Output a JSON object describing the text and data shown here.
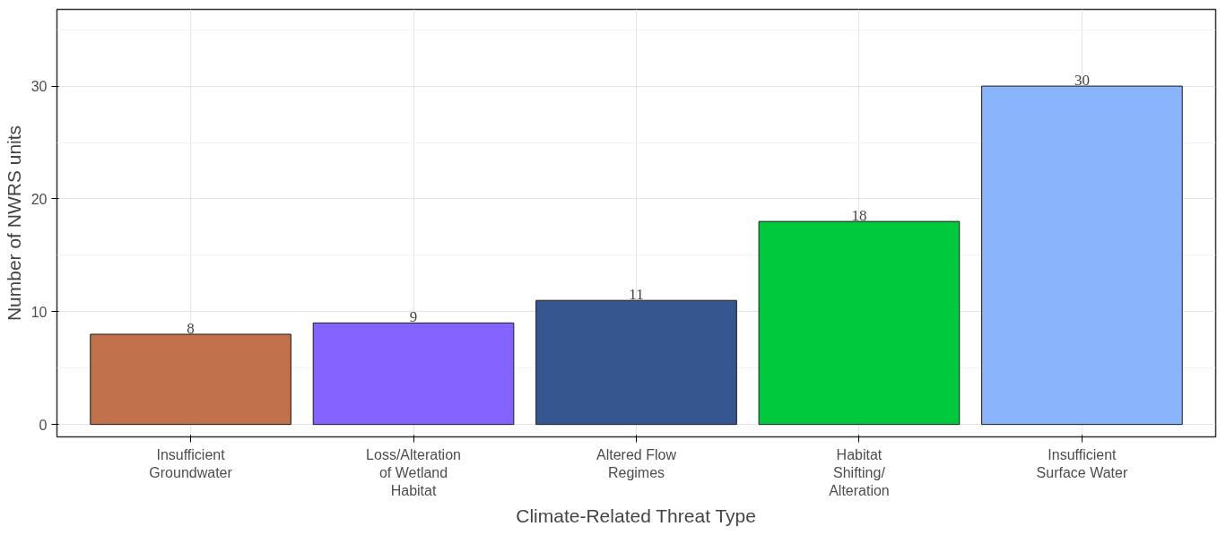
{
  "chart_data": {
    "type": "bar",
    "xlabel": "Climate-Related Threat Type",
    "ylabel": "Number of NWRS units",
    "categories": [
      "Insufficient\nGroundwater",
      "Loss/Alteration\nof Wetland\nHabitat",
      "Altered Flow\nRegimes",
      "Habitat\nShifting/\nAlteration",
      "Insufficient\nSurface Water"
    ],
    "values": [
      8,
      9,
      11,
      18,
      30
    ],
    "colors": [
      "#c0714a",
      "#8463ff",
      "#35568f",
      "#00c93d",
      "#8ab4fb"
    ],
    "ylim": [
      -1.1,
      36.8
    ],
    "yticks": [
      0,
      10,
      20,
      30
    ],
    "grid": true,
    "data_labels": true
  }
}
